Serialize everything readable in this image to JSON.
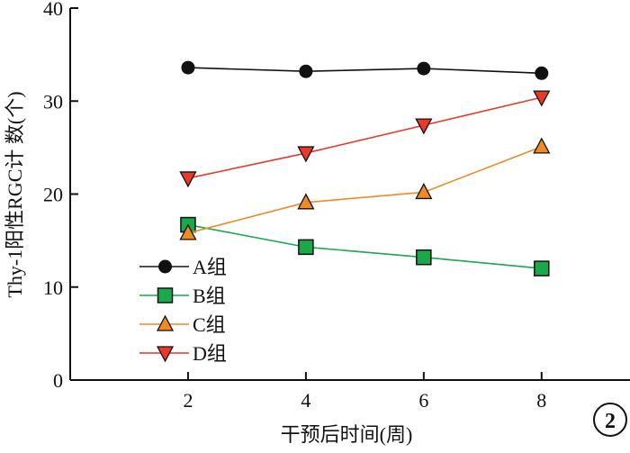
{
  "chart_data": {
    "type": "line",
    "title": "",
    "xlabel": "干预后时间(周)",
    "ylabel": "Thy-1阳性RGC计 数(个)",
    "x": [
      2,
      4,
      6,
      8
    ],
    "xlim": [
      0,
      9.5
    ],
    "ylim": [
      0,
      40
    ],
    "x_ticks": [
      "2",
      "4",
      "6",
      "8"
    ],
    "y_ticks": [
      "0",
      "10",
      "20",
      "30",
      "40"
    ],
    "grid": false,
    "legend_position": "center-left",
    "series": [
      {
        "name": "A组",
        "values": [
          33.6,
          33.2,
          33.5,
          33.0
        ],
        "color": "#111111",
        "marker": "circle"
      },
      {
        "name": "B组",
        "values": [
          16.7,
          14.3,
          13.2,
          12.0
        ],
        "color": "#1aa84a",
        "marker": "square"
      },
      {
        "name": "C组",
        "values": [
          15.8,
          19.1,
          20.2,
          25.1
        ],
        "color": "#f08a24",
        "marker": "triangle-up"
      },
      {
        "name": "D组",
        "values": [
          21.7,
          24.4,
          27.4,
          30.4
        ],
        "color": "#e8392b",
        "marker": "triangle-down"
      }
    ],
    "badge": "2"
  }
}
